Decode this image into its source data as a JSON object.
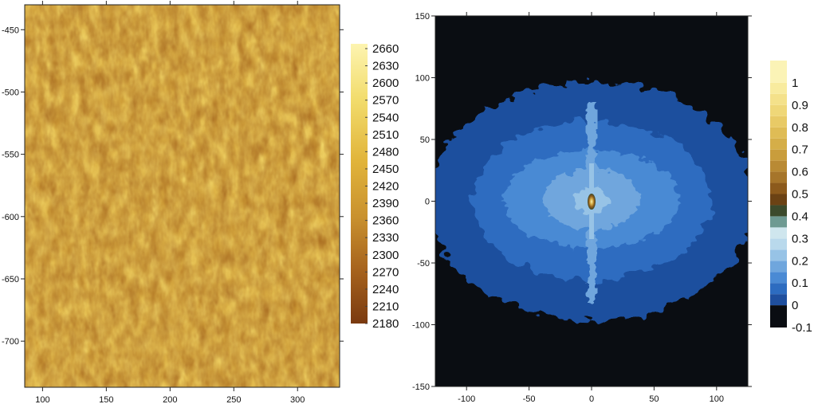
{
  "chart_data": [
    {
      "type": "heatmap",
      "title": "",
      "xlabel": "",
      "ylabel": "",
      "xlim": [
        86,
        333
      ],
      "ylim": [
        -737,
        -430
      ],
      "x_ticks": [
        100,
        150,
        200,
        250,
        300
      ],
      "y_ticks": [
        -450,
        -500,
        -550,
        -600,
        -650,
        -700
      ],
      "x_tick_labels": [
        "100",
        "150",
        "200",
        "250",
        "300"
      ],
      "y_tick_labels": [
        "-450",
        "-500",
        "-550",
        "-600",
        "-650",
        "-700"
      ],
      "colorbar": {
        "min": 2180,
        "max": 2660,
        "ticks": [
          2660,
          2630,
          2600,
          2570,
          2540,
          2510,
          2480,
          2450,
          2420,
          2390,
          2360,
          2330,
          2300,
          2270,
          2240,
          2210,
          2180
        ],
        "tick_labels": [
          "2660",
          "2630",
          "2600",
          "2570",
          "2540",
          "2510",
          "2480",
          "2450",
          "2420",
          "2390",
          "2360",
          "2330",
          "2300",
          "2270",
          "2240",
          "2210",
          "2180"
        ],
        "colors": [
          "#7a3a10",
          "#a4601c",
          "#c9912e",
          "#e1b43a",
          "#f2dc6c",
          "#fdf4b0"
        ]
      },
      "field": {
        "mean": 2450,
        "min": 2180,
        "max": 2660,
        "texture": "fine random speckle, yellow-ochre"
      }
    },
    {
      "type": "heatmap",
      "title": "",
      "xlabel": "",
      "ylabel": "",
      "xlim": [
        -125,
        125
      ],
      "ylim": [
        -150,
        150
      ],
      "x_ticks": [
        -100,
        -50,
        0,
        50,
        100
      ],
      "y_ticks": [
        150,
        100,
        50,
        0,
        -50,
        -100,
        -150
      ],
      "x_tick_labels": [
        "-100",
        "-50",
        "0",
        "50",
        "100"
      ],
      "y_tick_labels": [
        "150",
        "100",
        "50",
        "0",
        "-50",
        "-100",
        "-150"
      ],
      "colorbar": {
        "min": -0.1,
        "max": 1.1,
        "ticks": [
          1,
          0.9,
          0.8,
          0.7,
          0.6,
          0.5,
          0.4,
          0.3,
          0.2,
          0.1,
          0,
          -0.1
        ],
        "tick_labels": [
          "1",
          "0.9",
          "0.8",
          "0.7",
          "0.6",
          "0.5",
          "0.4",
          "0.3",
          "0.2",
          "0.1",
          "0",
          "-0.1"
        ],
        "levels": [
          {
            "from": -0.1,
            "to": 0.0,
            "color": "#0a0d12"
          },
          {
            "from": 0.0,
            "to": 0.05,
            "color": "#1f4f9e"
          },
          {
            "from": 0.05,
            "to": 0.1,
            "color": "#2d6cc0"
          },
          {
            "from": 0.1,
            "to": 0.15,
            "color": "#4a8ad4"
          },
          {
            "from": 0.15,
            "to": 0.2,
            "color": "#6fa6dd"
          },
          {
            "from": 0.2,
            "to": 0.25,
            "color": "#97c3e6"
          },
          {
            "from": 0.25,
            "to": 0.3,
            "color": "#b9d9ec"
          },
          {
            "from": 0.3,
            "to": 0.35,
            "color": "#cfe6ee"
          },
          {
            "from": 0.35,
            "to": 0.4,
            "color": "#6e9a92"
          },
          {
            "from": 0.4,
            "to": 0.45,
            "color": "#3c4a2c"
          },
          {
            "from": 0.45,
            "to": 0.5,
            "color": "#6b4214"
          },
          {
            "from": 0.5,
            "to": 0.55,
            "color": "#8c5a1c"
          },
          {
            "from": 0.55,
            "to": 0.6,
            "color": "#a6752a"
          },
          {
            "from": 0.6,
            "to": 0.65,
            "color": "#b98a34"
          },
          {
            "from": 0.65,
            "to": 0.7,
            "color": "#c99d3c"
          },
          {
            "from": 0.7,
            "to": 0.75,
            "color": "#d5ae48"
          },
          {
            "from": 0.75,
            "to": 0.8,
            "color": "#dfbc55"
          },
          {
            "from": 0.8,
            "to": 0.85,
            "color": "#e8ca66"
          },
          {
            "from": 0.85,
            "to": 0.9,
            "color": "#efd778"
          },
          {
            "from": 0.9,
            "to": 0.95,
            "color": "#f4e18a"
          },
          {
            "from": 0.95,
            "to": 1.0,
            "color": "#f8eb9e"
          },
          {
            "from": 1.0,
            "to": 1.1,
            "color": "#fbf3b6"
          }
        ]
      },
      "peak": {
        "x": 0,
        "y": 0,
        "value": 1.0
      }
    }
  ]
}
